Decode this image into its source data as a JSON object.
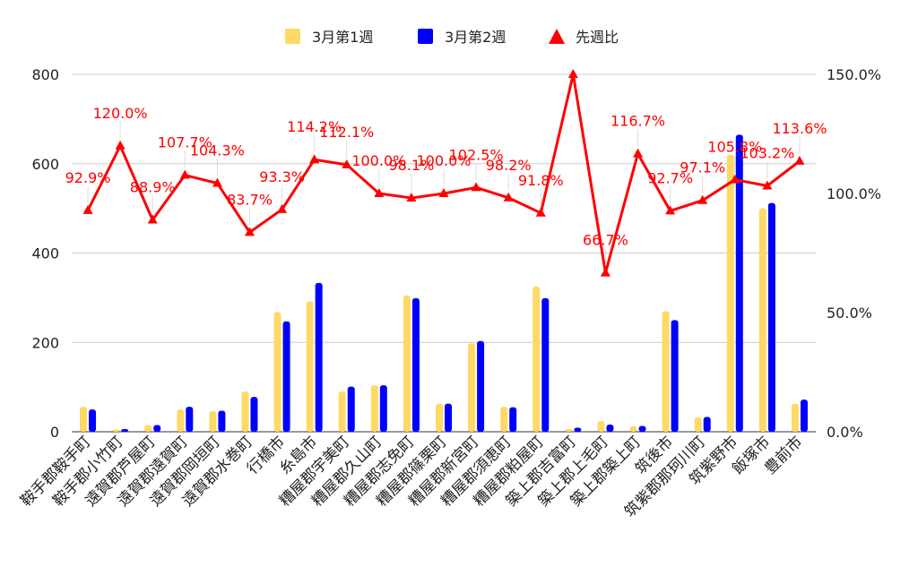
{
  "chart_data": {
    "type": "bar",
    "categories": [
      "鞍手郡鞍手町",
      "鞍手郡小竹町",
      "遠賀郡芦屋町",
      "遠賀郡遠賀町",
      "遠賀郡岡垣町",
      "遠賀郡水巻町",
      "行橋市",
      "糸島市",
      "糟屋郡宇美町",
      "糟屋郡久山町",
      "糟屋郡志免町",
      "糟屋郡篠栗町",
      "糟屋郡新宮町",
      "糟屋郡須恵町",
      "糟屋郡粕屋町",
      "築上郡吉富町",
      "築上郡上毛町",
      "築上郡築上町",
      "筑後市",
      "筑紫郡那珂川町",
      "筑紫野市",
      "飯塚市",
      "豊前市"
    ],
    "series": [
      {
        "name": "3月第1週",
        "kind": "bar",
        "axis": "left",
        "color": "#FFD966",
        "values": [
          56,
          5,
          15,
          50,
          46,
          90,
          268,
          292,
          90,
          104,
          305,
          63,
          198,
          56,
          325,
          6,
          24,
          12,
          270,
          32,
          620,
          500,
          63
        ]
      },
      {
        "name": "3月第2週",
        "kind": "bar",
        "axis": "left",
        "color": "#0000FF",
        "values": [
          50,
          6,
          15,
          56,
          47,
          78,
          247,
          333,
          101,
          104,
          299,
          63,
          203,
          55,
          299,
          9,
          16,
          13,
          250,
          33,
          665,
          512,
          72
        ]
      },
      {
        "name": "先週比",
        "kind": "line",
        "axis": "right",
        "color": "#FF0000",
        "marker": "triangle",
        "values": [
          92.9,
          120.0,
          88.9,
          107.7,
          104.3,
          83.7,
          93.3,
          114.2,
          112.1,
          100.0,
          98.1,
          100.0,
          102.5,
          98.2,
          91.8,
          150.0,
          66.7,
          116.7,
          92.7,
          97.1,
          105.8,
          103.2,
          113.6
        ],
        "labels": [
          "92.9%",
          "120.0%",
          "88.9%",
          "107.7%",
          "104.3%",
          "83.7%",
          "93.3%",
          "114.2%",
          "112.1%",
          "100.0%",
          "98.1%",
          "100.0%",
          "102.5%",
          "98.2%",
          "91.8%",
          "",
          "66.7%",
          "116.7%",
          "92.7%",
          "97.1%",
          "105.8%",
          "103.2%",
          "113.6%"
        ]
      }
    ],
    "left_axis": {
      "min": 0,
      "max": 800,
      "ticks": [
        "0",
        "200",
        "400",
        "600",
        "800"
      ]
    },
    "right_axis": {
      "min": 0,
      "max": 150,
      "ticks": [
        "0.0%",
        "50.0%",
        "100.0%",
        "150.0%"
      ]
    },
    "legend_position": "top-center",
    "grid": true
  }
}
